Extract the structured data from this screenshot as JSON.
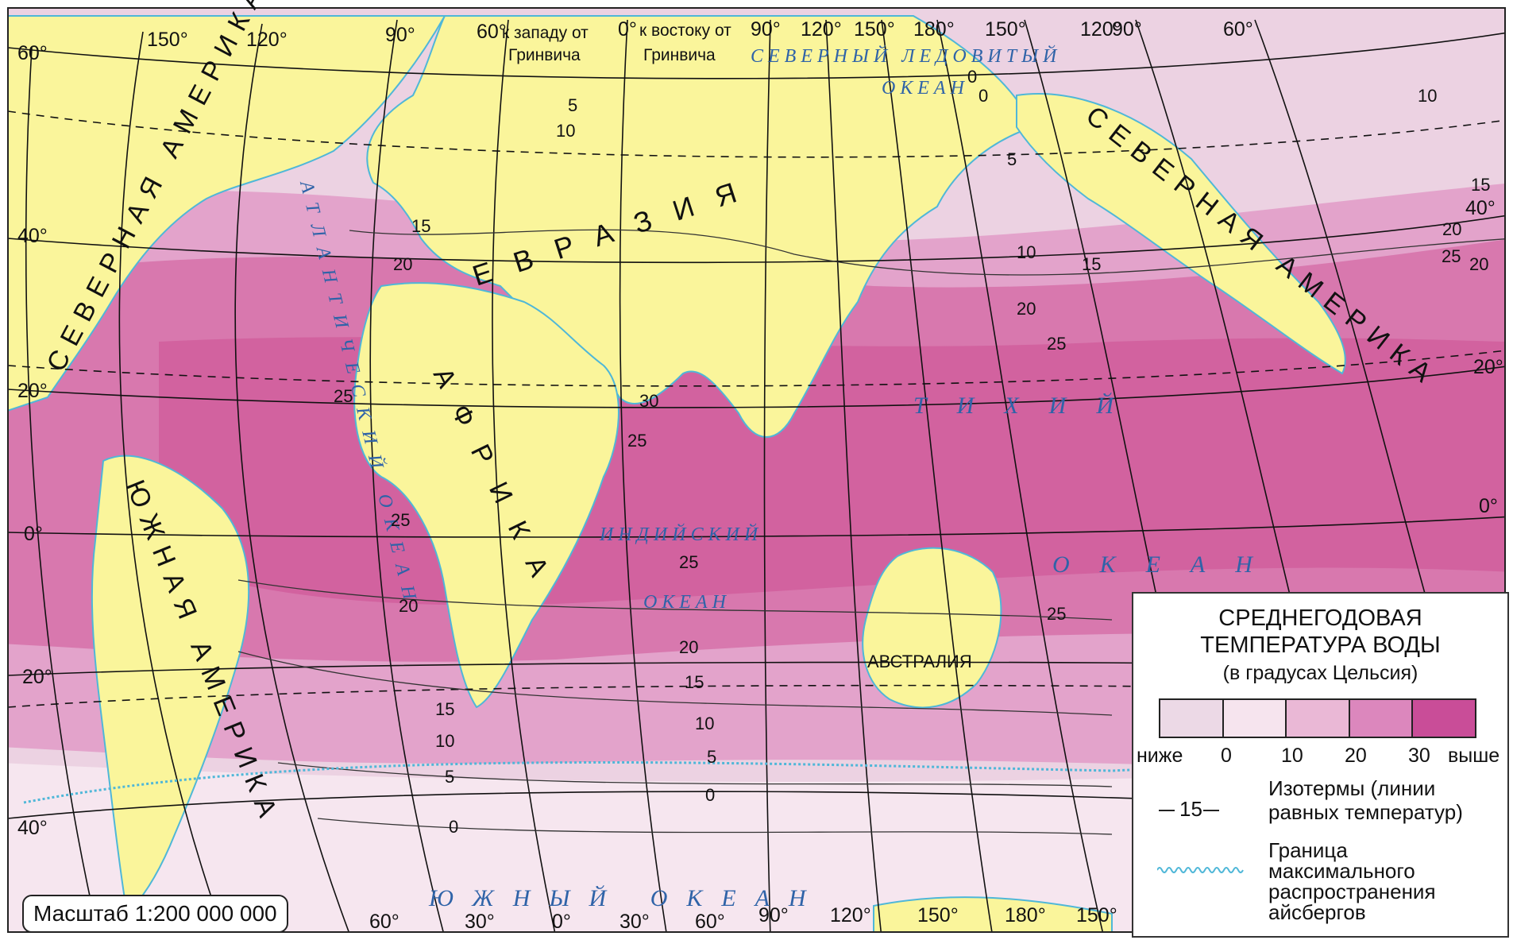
{
  "meridian_labels_top": [
    "60°",
    "150°",
    "120°",
    "90°",
    "60°",
    "к западу от",
    "Гринвича",
    "0°",
    "к востоку от",
    "Гринвича",
    "90°",
    "120°",
    "150°",
    "180°",
    "150°",
    "120°",
    "90°",
    "60°"
  ],
  "meridian_labels_bottom": [
    "60°",
    "30°",
    "0°",
    "30°",
    "60°",
    "90°",
    "120°",
    "150°",
    "180°",
    "150°"
  ],
  "parallel_labels_left": [
    "60°",
    "40°",
    "20°",
    "0°",
    "20°",
    "40°"
  ],
  "parallel_labels_right": [
    "40°",
    "20°",
    "0°"
  ],
  "continents": {
    "north_america_left": "СЕВЕРНАЯ АМЕРИКА",
    "north_america_right": "СЕВЕРНАЯ АМЕРИКА",
    "south_america": "ЮЖНАЯ АМЕРИКА",
    "eurasia": "ЕВРАЗИЯ",
    "africa": "АФРИКА",
    "australia": "АВСТРАЛИЯ"
  },
  "oceans": {
    "arctic_1": "СЕВЕРНЫЙ ЛЕДОВИТЫЙ",
    "arctic_2": "ОКЕАН",
    "atlantic": "АТЛАНТИЧЕСКИЙ ОКЕАН",
    "indian_1": "ИНДИЙСКИЙ",
    "indian_2": "ОКЕАН",
    "pacific_1": "ТИХИЙ",
    "pacific_2": "ОКЕАН",
    "southern": "ЮЖНЫЙ ОКЕАН"
  },
  "isotherm_labels": [
    "0",
    "5",
    "10",
    "10",
    "15",
    "20",
    "25",
    "30",
    "25",
    "25",
    "25",
    "20",
    "15",
    "10",
    "5",
    "0",
    "25",
    "20",
    "15",
    "10",
    "5",
    "0",
    "10",
    "15",
    "20",
    "25",
    "20",
    "15",
    "20",
    "25",
    "10",
    "0",
    "5"
  ],
  "scale": "Масштаб 1:200 000 000",
  "legend": {
    "title_1": "СРЕДНЕГОДОВАЯ",
    "title_2": "ТЕМПЕРАТУРА ВОДЫ",
    "subtitle": "(в градусах Цельсия)",
    "color_bins": [
      "#ecd9e6",
      "#f6e4ee",
      "#eab8d6",
      "#dc87bd",
      "#c94d98"
    ],
    "ticks": [
      "ниже",
      "0",
      "10",
      "20",
      "30",
      "выше"
    ],
    "isotherm_sample": "15",
    "isotherm_text_1": "Изотермы (линии",
    "isotherm_text_2": "равных температур)",
    "iceberg_text_1": "Граница",
    "iceberg_text_2": "максимального",
    "iceberg_text_3": "распространения",
    "iceberg_text_4": "айсбергов"
  },
  "colors": {
    "land": "#faf59b",
    "warm": "#d6689f",
    "medium": "#e39ac6",
    "cool": "#f0c9df",
    "cold": "#f7e5ee",
    "water_line": "#4fb7d8",
    "ocean_text": "#2f63a8"
  }
}
